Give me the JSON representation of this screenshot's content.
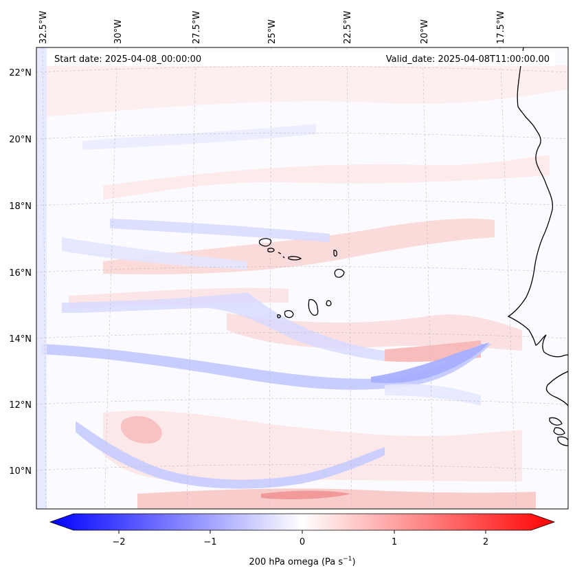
{
  "map": {
    "start_date": "Start date: 2025-04-08_00:00:00",
    "valid_date": "Valid_date: 2025-04-08T11:00:00.00",
    "lon_ticks": [
      "32.5°W",
      "30°W",
      "27.5°W",
      "25°W",
      "22.5°W",
      "20°W",
      "17.5°W"
    ],
    "lat_ticks": [
      "22°N",
      "20°N",
      "18°N",
      "16°N",
      "14°N",
      "12°N",
      "10°N"
    ],
    "field": "200 hPa omega",
    "colorbar": {
      "label": "200 hPa omega (Pa s",
      "label_sup": "−1",
      "label_close": ")",
      "ticks": [
        "−2",
        "−1",
        "0",
        "1",
        "2"
      ],
      "min": -2.5,
      "max": 2.5,
      "low_color": "#0000ff",
      "mid_color": "#ffffff",
      "high_color": "#ff0000"
    }
  }
}
